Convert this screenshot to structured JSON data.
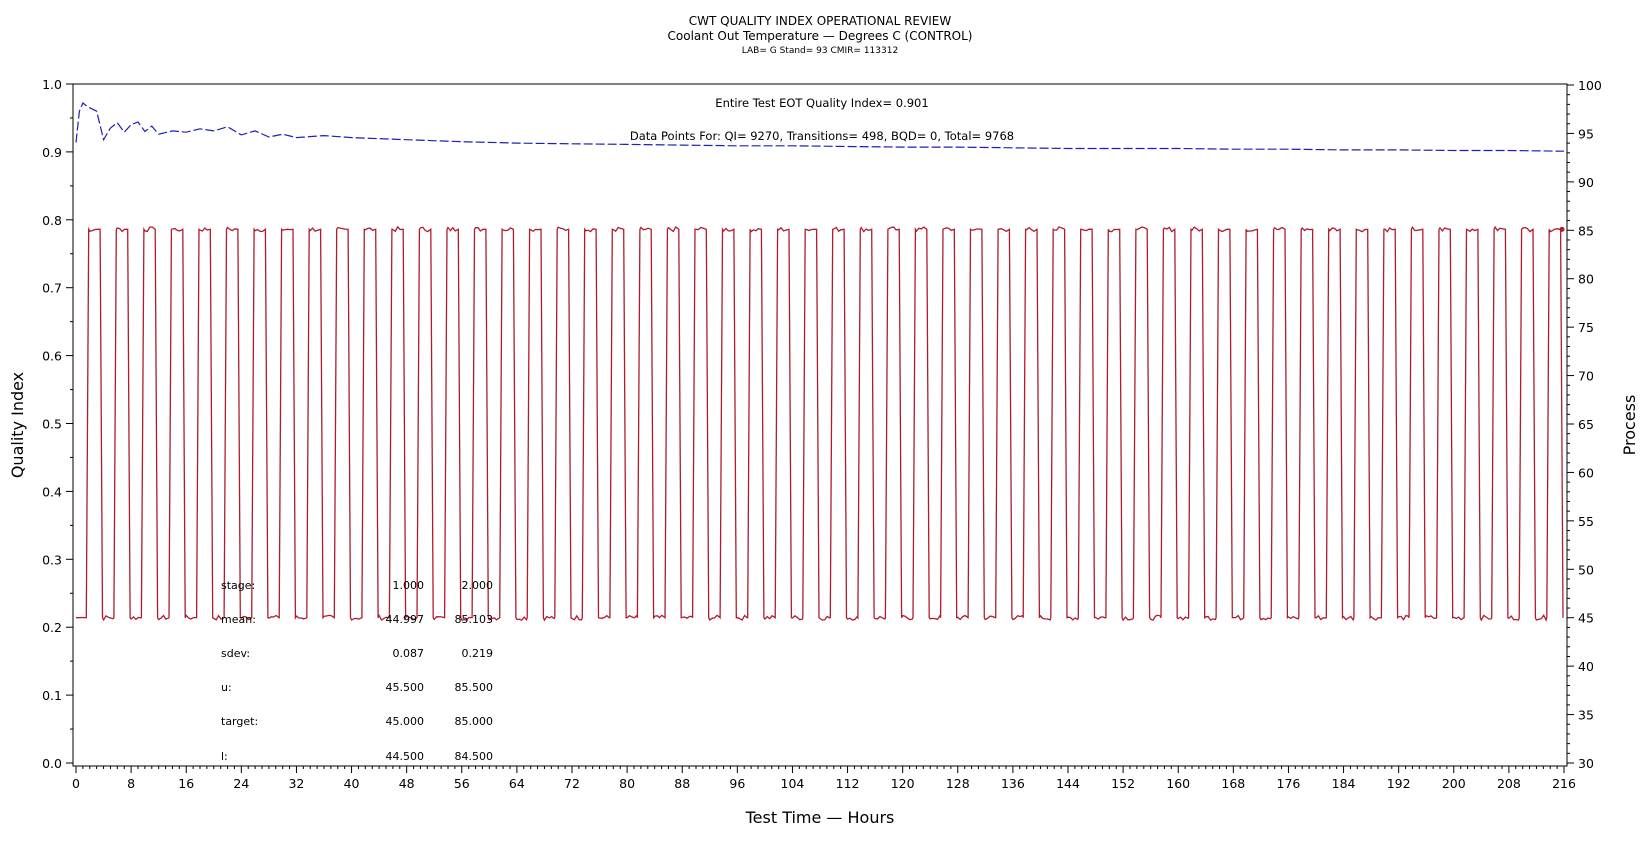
{
  "header": {
    "title": "CWT QUALITY INDEX OPERATIONAL REVIEW",
    "subtitle": "Coolant Out Temperature — Degrees C (CONTROL)",
    "sub2": "LAB= G Stand= 93 CMIR= 113312"
  },
  "annotations": {
    "qi": "Entire Test EOT Quality Index=   0.901",
    "points": "Data Points For: QI=   9270, Transitions=    498, BQD=      0, Total=   9768"
  },
  "stats": {
    "rows": [
      {
        "label": "stage:",
        "v1": "1.000",
        "v2": "2.000"
      },
      {
        "label": "mean:",
        "v1": "44.997",
        "v2": "85.103"
      },
      {
        "label": "sdev:",
        "v1": "0.087",
        "v2": "0.219"
      },
      {
        "label": "u:",
        "v1": "45.500",
        "v2": "85.500"
      },
      {
        "label": "target:",
        "v1": "45.000",
        "v2": "85.000"
      },
      {
        "label": "l:",
        "v1": "44.500",
        "v2": "84.500"
      }
    ]
  },
  "chart_data": {
    "type": "line",
    "title": "CWT QUALITY INDEX OPERATIONAL REVIEW",
    "xlabel": "Test Time — Hours",
    "ylabel_left": "Quality Index",
    "ylabel_right": "Process",
    "xlim": [
      0,
      216
    ],
    "ylim_left": [
      0.0,
      1.0
    ],
    "ylim_right": [
      30,
      100
    ],
    "x_ticks": [
      0,
      8,
      16,
      24,
      32,
      40,
      48,
      56,
      64,
      72,
      80,
      88,
      96,
      104,
      112,
      120,
      128,
      136,
      144,
      152,
      160,
      168,
      176,
      184,
      192,
      200,
      208,
      216
    ],
    "y_left_ticks": [
      "0.0",
      "0.1",
      "0.2",
      "0.3",
      "0.4",
      "0.5",
      "0.6",
      "0.7",
      "0.8",
      "0.9",
      "1.0"
    ],
    "y_right_ticks": [
      30,
      35,
      40,
      45,
      50,
      55,
      60,
      65,
      70,
      75,
      80,
      85,
      90,
      95,
      100
    ],
    "grid": false,
    "series": [
      {
        "color": "#1f1fb8",
        "axis": "left",
        "style": "dashed",
        "x": [
          0,
          0.5,
          1,
          1.5,
          2,
          3,
          4,
          5,
          6,
          7,
          8,
          9,
          10,
          11,
          12,
          14,
          16,
          18,
          20,
          22,
          24,
          26,
          28,
          30,
          32,
          36,
          40,
          48,
          56,
          64,
          72,
          80,
          88,
          96,
          104,
          112,
          120,
          128,
          136,
          144,
          152,
          160,
          168,
          176,
          184,
          192,
          200,
          208,
          216
        ],
        "values": [
          0.914,
          0.96,
          0.972,
          0.968,
          0.965,
          0.96,
          0.918,
          0.935,
          0.943,
          0.929,
          0.94,
          0.944,
          0.93,
          0.938,
          0.926,
          0.931,
          0.929,
          0.934,
          0.931,
          0.937,
          0.925,
          0.931,
          0.922,
          0.926,
          0.921,
          0.924,
          0.921,
          0.918,
          0.915,
          0.913,
          0.912,
          0.911,
          0.91,
          0.909,
          0.909,
          0.908,
          0.907,
          0.907,
          0.906,
          0.905,
          0.905,
          0.905,
          0.904,
          0.904,
          0.903,
          0.903,
          0.902,
          0.902,
          0.901
        ]
      },
      {
        "color": "#b01c2e",
        "axis": "right",
        "style": "solid",
        "cycle_period_hours": 4,
        "low_value": 45,
        "high_value": 85.1,
        "start_hours": 1.5,
        "high_duration_hours": 2,
        "low_duration_hours": 2
      }
    ]
  }
}
